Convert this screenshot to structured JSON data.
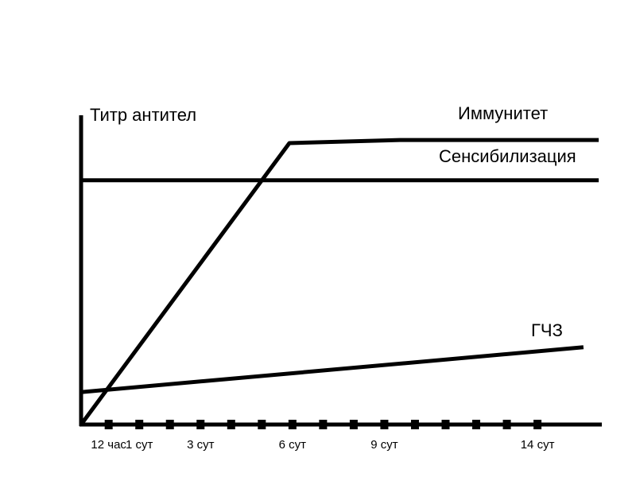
{
  "chart_data": {
    "type": "line",
    "ylabel": "Титр антител",
    "xlabel": "",
    "ticks": [
      {
        "x": 0,
        "label": "12 час"
      },
      {
        "x": 1,
        "label": "1 сут"
      },
      {
        "x": 2,
        "label": ""
      },
      {
        "x": 3,
        "label": "3 сут"
      },
      {
        "x": 4,
        "label": ""
      },
      {
        "x": 5,
        "label": ""
      },
      {
        "x": 6,
        "label": "6 сут"
      },
      {
        "x": 7,
        "label": ""
      },
      {
        "x": 8,
        "label": ""
      },
      {
        "x": 9,
        "label": "9 сут"
      },
      {
        "x": 10,
        "label": ""
      },
      {
        "x": 11,
        "label": ""
      },
      {
        "x": 12,
        "label": ""
      },
      {
        "x": 13,
        "label": ""
      },
      {
        "x": 14,
        "label": "14 сут"
      }
    ],
    "xlim": [
      -0.9,
      16.1
    ],
    "ylim": [
      0,
      100
    ],
    "series": [
      {
        "name": "Иммунитет",
        "points": [
          [
            -0.9,
            0
          ],
          [
            5.9,
            91
          ],
          [
            9.5,
            92
          ],
          [
            16,
            92
          ]
        ]
      },
      {
        "name": "Сенсибилизация",
        "points": [
          [
            -0.9,
            79
          ],
          [
            16,
            79
          ]
        ]
      },
      {
        "name": "ГЧЗ",
        "points": [
          [
            -0.9,
            10.5
          ],
          [
            15.5,
            25
          ]
        ]
      }
    ],
    "colors": {
      "line": "#000000",
      "background": "#ffffff"
    }
  }
}
